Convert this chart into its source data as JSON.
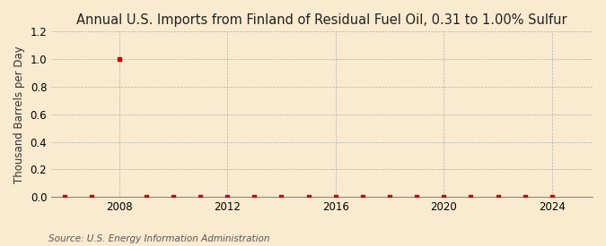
{
  "title": "Annual U.S. Imports from Finland of Residual Fuel Oil, 0.31 to 1.00% Sulfur",
  "ylabel": "Thousand Barrels per Day",
  "source": "Source: U.S. Energy Information Administration",
  "background_color": "#faebd0",
  "years": [
    2006,
    2007,
    2008,
    2009,
    2010,
    2011,
    2012,
    2013,
    2014,
    2015,
    2016,
    2017,
    2018,
    2019,
    2020,
    2021,
    2022,
    2023,
    2024
  ],
  "values": [
    0.0,
    0.0,
    1.0,
    0.0,
    0.0,
    0.0,
    0.0,
    0.0,
    0.0,
    0.0,
    0.0,
    0.0,
    0.0,
    0.0,
    0.0,
    0.0,
    0.0,
    0.0,
    0.0
  ],
  "marker_color": "#cc0000",
  "ylim": [
    0.0,
    1.2
  ],
  "yticks": [
    0.0,
    0.2,
    0.4,
    0.6,
    0.8,
    1.0,
    1.2
  ],
  "xlim": [
    2005.5,
    2025.5
  ],
  "xticks": [
    2008,
    2012,
    2016,
    2020,
    2024
  ],
  "title_fontsize": 10.5,
  "label_fontsize": 8.5,
  "tick_fontsize": 8.5,
  "source_fontsize": 7.5
}
